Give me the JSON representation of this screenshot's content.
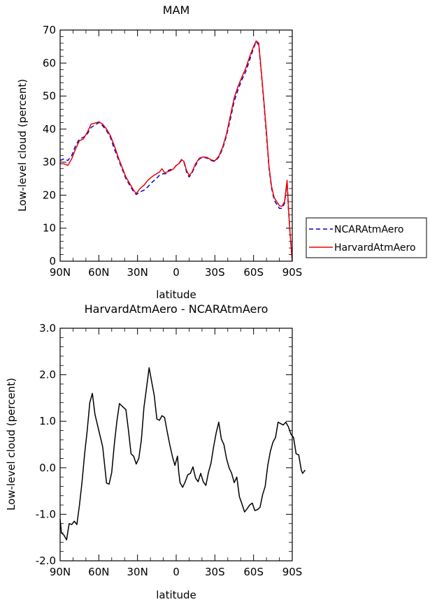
{
  "chart_data": [
    {
      "type": "line",
      "title": "MAM",
      "xlabel": "latitude",
      "ylabel": "Low-level cloud (percent)",
      "xlim": [
        90,
        -90
      ],
      "ylim": [
        0,
        70
      ],
      "x_ticks": [
        90,
        60,
        30,
        0,
        -30,
        -60,
        -90
      ],
      "x_tick_labels": [
        "90N",
        "60N",
        "30N",
        "0",
        "30S",
        "60S",
        "90S"
      ],
      "y_ticks": [
        0,
        10,
        20,
        30,
        40,
        50,
        60,
        70
      ],
      "y_tick_labels": [
        "0",
        "10",
        "20",
        "30",
        "40",
        "50",
        "60",
        "70"
      ],
      "legend_position": "right, outside plot",
      "grid": false,
      "series": [
        {
          "name": "NCARAtmAero",
          "color": "#0000cc",
          "dash": "dashed",
          "points": [
            [
              90,
              30.5
            ],
            [
              87,
              31
            ],
            [
              84,
              30.5
            ],
            [
              81,
              32
            ],
            [
              78,
              35
            ],
            [
              75,
              37
            ],
            [
              72,
              37.5
            ],
            [
              69,
              38.5
            ],
            [
              66,
              40.5
            ],
            [
              63,
              41.2
            ],
            [
              60,
              42
            ],
            [
              57,
              41
            ],
            [
              54,
              39.5
            ],
            [
              51,
              37.5
            ],
            [
              48,
              34
            ],
            [
              45,
              31
            ],
            [
              42,
              28
            ],
            [
              39,
              25
            ],
            [
              36,
              23
            ],
            [
              33,
              21
            ],
            [
              31,
              20.2
            ],
            [
              28,
              21
            ],
            [
              25,
              21.5
            ],
            [
              22,
              22.5
            ],
            [
              19,
              23.8
            ],
            [
              16,
              24.8
            ],
            [
              13,
              26
            ],
            [
              10,
              26.5
            ],
            [
              8,
              26.5
            ],
            [
              6,
              27.5
            ],
            [
              4,
              27.8
            ],
            [
              2,
              28
            ],
            [
              0,
              29
            ],
            [
              -2,
              29.5
            ],
            [
              -4,
              30.5
            ],
            [
              -6,
              30
            ],
            [
              -8,
              27
            ],
            [
              -10,
              25.5
            ],
            [
              -12,
              26.5
            ],
            [
              -15,
              29
            ],
            [
              -18,
              31
            ],
            [
              -21,
              31.5
            ],
            [
              -24,
              31.2
            ],
            [
              -27,
              30.5
            ],
            [
              -30,
              30.2
            ],
            [
              -33,
              31.5
            ],
            [
              -36,
              34
            ],
            [
              -39,
              38
            ],
            [
              -42,
              43
            ],
            [
              -45,
              48.5
            ],
            [
              -48,
              52
            ],
            [
              -51,
              55
            ],
            [
              -54,
              57.5
            ],
            [
              -57,
              61
            ],
            [
              -60,
              64.5
            ],
            [
              -62,
              66.5
            ],
            [
              -64,
              65.5
            ],
            [
              -66,
              57
            ],
            [
              -68,
              48
            ],
            [
              -70,
              38
            ],
            [
              -72,
              28
            ],
            [
              -74,
              22
            ],
            [
              -76,
              18.5
            ],
            [
              -78,
              17.2
            ],
            [
              -80,
              16
            ],
            [
              -82,
              16
            ],
            [
              -84,
              17.5
            ],
            [
              -86,
              24
            ],
            [
              -87,
              16
            ],
            [
              -88,
              10
            ],
            [
              -90,
              0
            ]
          ]
        },
        {
          "name": "HarvardAtmAero",
          "color": "#ee0000",
          "dash": "solid",
          "points": [
            [
              90,
              29.5
            ],
            [
              87,
              29.5
            ],
            [
              84,
              29
            ],
            [
              81,
              31
            ],
            [
              78,
              34
            ],
            [
              75,
              36.5
            ],
            [
              72,
              37
            ],
            [
              69,
              39
            ],
            [
              66,
              41.5
            ],
            [
              63,
              41.8
            ],
            [
              60,
              42.2
            ],
            [
              57,
              41.5
            ],
            [
              54,
              40
            ],
            [
              51,
              38
            ],
            [
              48,
              35
            ],
            [
              45,
              31.5
            ],
            [
              42,
              28.5
            ],
            [
              39,
              25.5
            ],
            [
              36,
              23.5
            ],
            [
              33,
              21.5
            ],
            [
              31,
              20.5
            ],
            [
              28,
              22
            ],
            [
              25,
              23
            ],
            [
              22,
              24.5
            ],
            [
              19,
              25.5
            ],
            [
              16,
              26.3
            ],
            [
              13,
              27
            ],
            [
              11,
              28
            ],
            [
              9,
              26.8
            ],
            [
              7,
              27
            ],
            [
              4,
              27.5
            ],
            [
              2,
              28
            ],
            [
              0,
              29
            ],
            [
              -2,
              29.5
            ],
            [
              -4,
              30.8
            ],
            [
              -6,
              30.2
            ],
            [
              -8,
              27.5
            ],
            [
              -10,
              26
            ],
            [
              -12,
              26.8
            ],
            [
              -15,
              29.5
            ],
            [
              -18,
              31.2
            ],
            [
              -21,
              31.6
            ],
            [
              -24,
              31.4
            ],
            [
              -27,
              30.7
            ],
            [
              -30,
              30.4
            ],
            [
              -33,
              31.8
            ],
            [
              -36,
              34.5
            ],
            [
              -39,
              38.5
            ],
            [
              -42,
              44
            ],
            [
              -45,
              49.5
            ],
            [
              -48,
              53
            ],
            [
              -51,
              55.8
            ],
            [
              -54,
              58.5
            ],
            [
              -57,
              62
            ],
            [
              -60,
              65
            ],
            [
              -62,
              66.7
            ],
            [
              -64,
              66
            ],
            [
              -66,
              57.5
            ],
            [
              -68,
              48.5
            ],
            [
              -70,
              39
            ],
            [
              -72,
              28.5
            ],
            [
              -74,
              22.5
            ],
            [
              -76,
              19.2
            ],
            [
              -78,
              18
            ],
            [
              -80,
              16.8
            ],
            [
              -82,
              16.6
            ],
            [
              -84,
              18
            ],
            [
              -86,
              24.5
            ],
            [
              -87,
              16.5
            ],
            [
              -88,
              10
            ],
            [
              -90,
              0
            ]
          ]
        }
      ]
    },
    {
      "type": "line",
      "title": "HarvardAtmAero - NCARAtmAero",
      "xlabel": "latitude",
      "ylabel": "Low-level cloud (percent)",
      "xlim": [
        90,
        -90
      ],
      "ylim": [
        -2,
        3
      ],
      "x_ticks": [
        90,
        60,
        30,
        0,
        -30,
        -60,
        -90
      ],
      "x_tick_labels": [
        "90N",
        "60N",
        "30N",
        "0",
        "30S",
        "60S",
        "90S"
      ],
      "y_ticks": [
        -2,
        -1,
        0,
        1,
        2,
        3
      ],
      "y_tick_labels": [
        "-2.0",
        "-1.0",
        "0.0",
        "1.0",
        "2.0",
        "3.0"
      ],
      "grid": false,
      "series": [
        {
          "color": "#000000",
          "dash": "solid",
          "points": [
            [
              90,
              -1.1
            ],
            [
              89,
              -1.4
            ],
            [
              87,
              -1.45
            ],
            [
              85,
              -1.55
            ],
            [
              83,
              -1.2
            ],
            [
              81,
              -1.22
            ],
            [
              79,
              -1.15
            ],
            [
              77,
              -1.22
            ],
            [
              75,
              -0.8
            ],
            [
              73,
              -0.3
            ],
            [
              71,
              0.3
            ],
            [
              69,
              0.8
            ],
            [
              67,
              1.4
            ],
            [
              65,
              1.6
            ],
            [
              63,
              1.15
            ],
            [
              60,
              0.8
            ],
            [
              57,
              0.45
            ],
            [
              54,
              -0.33
            ],
            [
              52,
              -0.35
            ],
            [
              50,
              -0.1
            ],
            [
              48,
              0.5
            ],
            [
              46,
              1.0
            ],
            [
              44,
              1.38
            ],
            [
              41,
              1.3
            ],
            [
              39,
              1.25
            ],
            [
              37,
              0.8
            ],
            [
              35,
              0.3
            ],
            [
              33,
              0.25
            ],
            [
              31,
              0.08
            ],
            [
              29,
              0.2
            ],
            [
              27,
              0.6
            ],
            [
              25,
              1.3
            ],
            [
              23,
              1.72
            ],
            [
              21,
              2.15
            ],
            [
              19,
              1.85
            ],
            [
              17,
              1.55
            ],
            [
              15,
              1.05
            ],
            [
              13,
              1.02
            ],
            [
              11,
              1.12
            ],
            [
              9,
              1.08
            ],
            [
              7,
              0.78
            ],
            [
              5,
              0.5
            ],
            [
              3,
              0.25
            ],
            [
              1,
              0.05
            ],
            [
              -1,
              0.25
            ],
            [
              -2,
              -0.1
            ],
            [
              -3,
              -0.32
            ],
            [
              -5,
              -0.42
            ],
            [
              -7,
              -0.3
            ],
            [
              -9,
              -0.15
            ],
            [
              -11,
              -0.12
            ],
            [
              -13,
              0.02
            ],
            [
              -15,
              -0.22
            ],
            [
              -17,
              -0.3
            ],
            [
              -19,
              -0.12
            ],
            [
              -21,
              -0.3
            ],
            [
              -23,
              -0.38
            ],
            [
              -25,
              -0.1
            ],
            [
              -27,
              0.1
            ],
            [
              -29,
              0.45
            ],
            [
              -31,
              0.75
            ],
            [
              -33,
              0.98
            ],
            [
              -35,
              0.62
            ],
            [
              -37,
              0.5
            ],
            [
              -39,
              0.2
            ],
            [
              -41,
              0.0
            ],
            [
              -43,
              -0.12
            ],
            [
              -45,
              -0.32
            ],
            [
              -47,
              -0.2
            ],
            [
              -49,
              -0.62
            ],
            [
              -51,
              -0.78
            ],
            [
              -53,
              -0.95
            ],
            [
              -55,
              -0.88
            ],
            [
              -57,
              -0.8
            ],
            [
              -59,
              -0.76
            ],
            [
              -61,
              -0.92
            ],
            [
              -63,
              -0.9
            ],
            [
              -65,
              -0.85
            ],
            [
              -67,
              -0.58
            ],
            [
              -69,
              -0.4
            ],
            [
              -71,
              0.05
            ],
            [
              -73,
              0.35
            ],
            [
              -75,
              0.55
            ],
            [
              -77,
              0.65
            ],
            [
              -79,
              0.98
            ],
            [
              -81,
              0.95
            ],
            [
              -83,
              0.92
            ],
            [
              -85,
              0.98
            ],
            [
              -87,
              0.88
            ],
            [
              -89,
              0.72
            ],
            [
              -91,
              0.65
            ],
            [
              -93,
              0.3
            ],
            [
              -95,
              0.28
            ],
            [
              -97,
              -0.05
            ],
            [
              -98,
              -0.12
            ],
            [
              -100,
              -0.05
            ]
          ]
        }
      ]
    }
  ]
}
